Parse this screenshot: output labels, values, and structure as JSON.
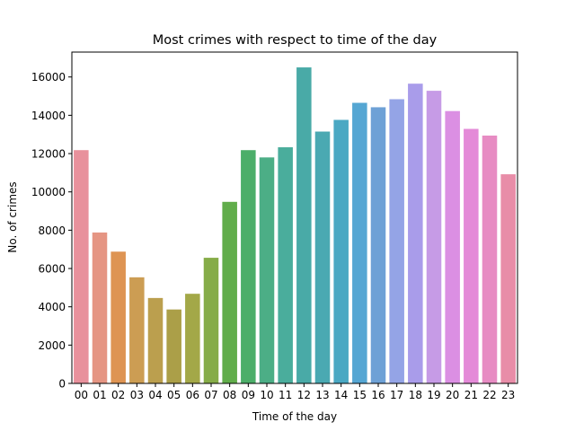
{
  "chart_data": {
    "type": "bar",
    "title": "Most crimes with respect to time of the day",
    "xlabel": "Time of the day",
    "ylabel": "No. of crimes",
    "ylim": [
      0,
      17300
    ],
    "yticks": [
      0,
      2000,
      4000,
      6000,
      8000,
      10000,
      12000,
      14000,
      16000
    ],
    "grid": false,
    "categories": [
      "00",
      "01",
      "02",
      "03",
      "04",
      "05",
      "06",
      "07",
      "08",
      "09",
      "10",
      "11",
      "12",
      "13",
      "14",
      "15",
      "16",
      "17",
      "18",
      "19",
      "20",
      "21",
      "22",
      "23"
    ],
    "values": [
      12180,
      7880,
      6880,
      5540,
      4460,
      3860,
      4680,
      6560,
      9480,
      12180,
      11800,
      12330,
      16500,
      13150,
      13760,
      14650,
      14420,
      14840,
      15650,
      15280,
      14220,
      13290,
      12940,
      10920
    ],
    "colors": [
      "#e8919c",
      "#e59583",
      "#de9453",
      "#cc9d53",
      "#bb9f4e",
      "#ab9f48",
      "#a3a848",
      "#86ac48",
      "#61ad4b",
      "#4cae69",
      "#4cae86",
      "#4aad9c",
      "#49aaa7",
      "#4aa9b2",
      "#4aa8c3",
      "#55a6d3",
      "#6ea1d6",
      "#94a4e6",
      "#a99cea",
      "#c69be6",
      "#db8fe3",
      "#e48ad8",
      "#e78cc3",
      "#e88da8"
    ]
  }
}
